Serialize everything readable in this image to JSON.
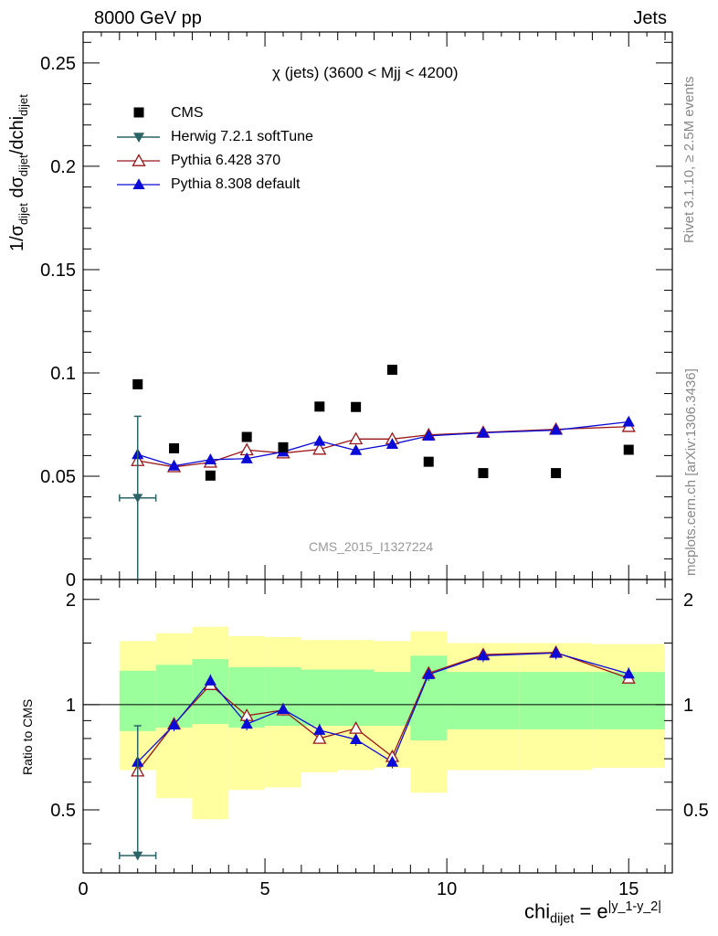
{
  "header": {
    "left": "8000 GeV pp",
    "right": "Jets"
  },
  "side_labels": {
    "rivet": "Rivet 3.1.10, ≥ 2.5M events",
    "mcplots": "mcplots.cern.ch [arXiv:1306.3436]"
  },
  "analysis_id": "CMS_2015_I1327224",
  "colors": {
    "cms": "#000000",
    "herwig": "#2a6466",
    "pythia6": "#9b1518",
    "pythia8": "#0b0bd8",
    "band_inner": "#9bff9b",
    "band_outer": "#ffff9f"
  },
  "chart_data": [
    {
      "type": "scatter",
      "title": "χ (jets) (3600 < Mjj < 4200)",
      "ylabel": "1/σdijet dσdijet/dchidijet",
      "ylim": [
        0,
        0.265
      ],
      "yticks": [
        "0",
        "0.05",
        "0.1",
        "0.15",
        "0.2",
        "0.25"
      ],
      "legend_position": "top-left",
      "x": [
        1.5,
        2.5,
        3.5,
        4.5,
        5.5,
        6.5,
        7.5,
        8.5,
        9.5,
        11,
        13,
        15
      ],
      "series": [
        {
          "name": "CMS",
          "marker": "square",
          "values": [
            0.0945,
            0.0635,
            0.0503,
            0.069,
            0.064,
            0.0837,
            0.0835,
            0.1015,
            0.057,
            0.0515,
            0.0515,
            0.0628
          ]
        },
        {
          "name": "Herwig 7.2.1 softTune",
          "marker": "triangle-down",
          "x": [
            1.5
          ],
          "values": [
            0.0395
          ],
          "y_err": [
            0.0395
          ],
          "x_err": [
            0.5
          ]
        },
        {
          "name": "Pythia 6.428 370",
          "marker": "triangle-open",
          "values": [
            0.0575,
            0.0545,
            0.0567,
            0.0627,
            0.0612,
            0.063,
            0.068,
            0.068,
            0.07,
            0.0712,
            0.0727,
            0.074
          ]
        },
        {
          "name": "Pythia 8.308 default",
          "marker": "triangle-filled",
          "values": [
            0.0605,
            0.055,
            0.058,
            0.0585,
            0.0618,
            0.067,
            0.0625,
            0.0655,
            0.0695,
            0.071,
            0.0723,
            0.0763
          ]
        }
      ]
    },
    {
      "type": "scatter",
      "ylabel": "Ratio to CMS",
      "xlabel": "chidijet = e|y_1-y_2|",
      "xlim": [
        0,
        16.2
      ],
      "ylim": [
        0.33,
        2.28
      ],
      "xticks": [
        "0",
        "5",
        "10",
        "15"
      ],
      "yticks": [
        "0.5",
        "1",
        "2"
      ],
      "reference_line": 1,
      "bins": [
        [
          1,
          2
        ],
        [
          2,
          3
        ],
        [
          3,
          4
        ],
        [
          4,
          5
        ],
        [
          5,
          6
        ],
        [
          6,
          7
        ],
        [
          7,
          8
        ],
        [
          8,
          9
        ],
        [
          9,
          10
        ],
        [
          10,
          12
        ],
        [
          12,
          14
        ],
        [
          14,
          16
        ]
      ],
      "band_inner": [
        [
          0.84,
          1.25
        ],
        [
          0.86,
          1.3
        ],
        [
          0.88,
          1.35
        ],
        [
          0.86,
          1.28
        ],
        [
          0.87,
          1.28
        ],
        [
          0.87,
          1.26
        ],
        [
          0.87,
          1.26
        ],
        [
          0.87,
          1.24
        ],
        [
          0.79,
          1.38
        ],
        [
          0.85,
          1.24
        ],
        [
          0.85,
          1.24
        ],
        [
          0.85,
          1.24
        ]
      ],
      "band_outer": [
        [
          0.65,
          1.52
        ],
        [
          0.54,
          1.6
        ],
        [
          0.47,
          1.67
        ],
        [
          0.57,
          1.57
        ],
        [
          0.58,
          1.56
        ],
        [
          0.64,
          1.53
        ],
        [
          0.65,
          1.53
        ],
        [
          0.66,
          1.52
        ],
        [
          0.56,
          1.62
        ],
        [
          0.65,
          1.5
        ],
        [
          0.65,
          1.5
        ],
        [
          0.66,
          1.49
        ]
      ],
      "series": [
        {
          "name": "Herwig 7.2.1 softTune",
          "x": [
            1.5
          ],
          "values": [
            0.37
          ],
          "y_err": [
            0.5
          ],
          "x_err": [
            0.5
          ]
        },
        {
          "name": "Pythia 6.428 370",
          "values": [
            0.645,
            0.88,
            1.14,
            0.93,
            0.965,
            0.8,
            0.855,
            0.71,
            1.23,
            1.39,
            1.41,
            1.19
          ]
        },
        {
          "name": "Pythia 8.308 default",
          "values": [
            0.685,
            0.875,
            1.17,
            0.88,
            0.97,
            0.845,
            0.795,
            0.685,
            1.22,
            1.38,
            1.405,
            1.225
          ]
        }
      ]
    }
  ]
}
